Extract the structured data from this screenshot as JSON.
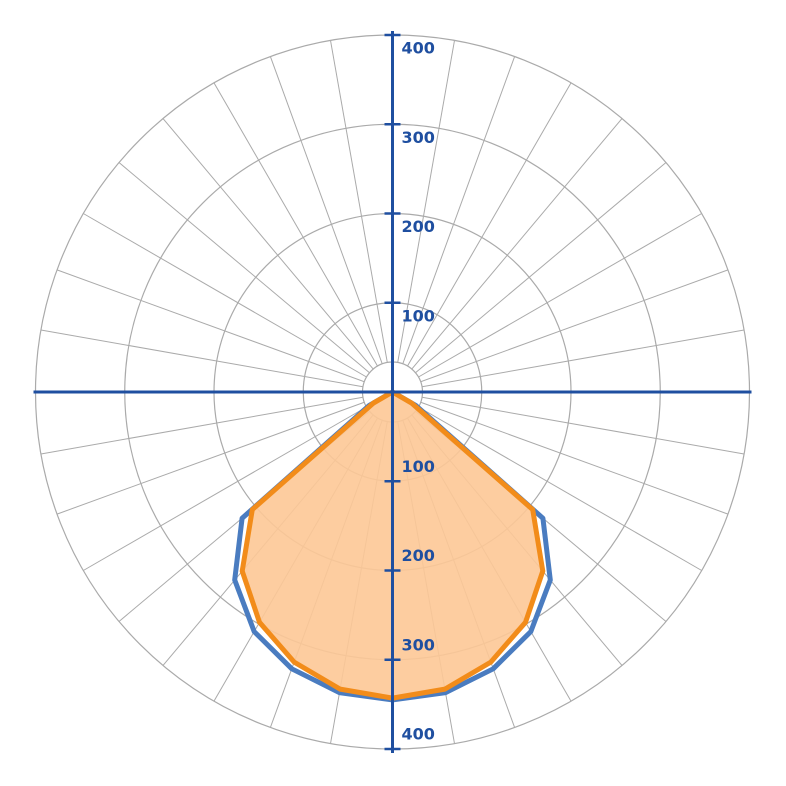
{
  "chart_data": {
    "type": "polar",
    "angles": [
      -90,
      -80,
      -70,
      -60,
      -50,
      -40,
      -30,
      -20,
      -10,
      0,
      10,
      20,
      30,
      40,
      50,
      60,
      70,
      80,
      90
    ],
    "series": [
      {
        "color": "#4a7cc0",
        "values": [
          0,
          0,
          0,
          30,
          220,
          275,
          310,
          330,
          342,
          345,
          342,
          330,
          310,
          275,
          220,
          30,
          0,
          0,
          0
        ]
      },
      {
        "color": "#f28c1a",
        "fill": "#fdc896",
        "values": [
          0,
          0,
          0,
          25,
          205,
          262,
          298,
          322,
          338,
          343,
          338,
          322,
          298,
          262,
          205,
          25,
          0,
          0,
          0
        ]
      }
    ],
    "rlim": [
      0,
      400
    ],
    "rticks": [
      100,
      200,
      300,
      400
    ],
    "grid": true,
    "axis_color": "#1f4fa0"
  }
}
